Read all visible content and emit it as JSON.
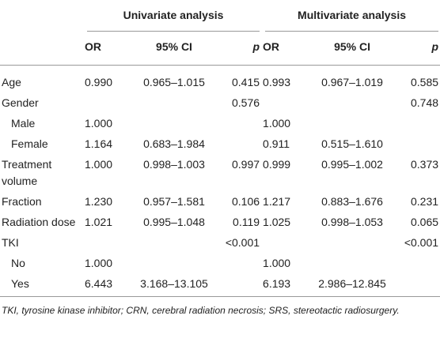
{
  "table": {
    "groups": [
      "Univariate analysis",
      "Multivariate analysis"
    ],
    "columns": [
      "OR",
      "95% CI",
      "p",
      "OR",
      "95% CI",
      "p"
    ],
    "rows": [
      {
        "label": "Age",
        "cells": [
          "0.990",
          "0.965–1.015",
          "0.415",
          "0.993",
          "0.967–1.019",
          "0.585"
        ]
      },
      {
        "label": "Gender",
        "cells": [
          null,
          null,
          "0.576",
          null,
          null,
          "0.748"
        ],
        "subrows": [
          {
            "label": "Male",
            "cells": [
              "1.000",
              null,
              null,
              "1.000",
              null,
              null
            ]
          },
          {
            "label": "Female",
            "cells": [
              "1.164",
              "0.683–1.984",
              null,
              "0.911",
              "0.515–1.610",
              null
            ]
          }
        ]
      },
      {
        "label": "Treatment volume",
        "cells": [
          "1.000",
          "0.998–1.003",
          "0.997",
          "0.999",
          "0.995–1.002",
          "0.373"
        ]
      },
      {
        "label": "Fraction",
        "cells": [
          "1.230",
          "0.957–1.581",
          "0.106",
          "1.217",
          "0.883–1.676",
          "0.231"
        ]
      },
      {
        "label": "Radiation dose",
        "cells": [
          "1.021",
          "0.995–1.048",
          "0.119",
          "1.025",
          "0.998–1.053",
          "0.065"
        ]
      },
      {
        "label": "TKI",
        "cells": [
          null,
          null,
          "<0.001",
          null,
          null,
          "<0.001"
        ],
        "subrows": [
          {
            "label": "No",
            "cells": [
              "1.000",
              null,
              null,
              "1.000",
              null,
              null
            ]
          },
          {
            "label": "Yes",
            "cells": [
              "6.443",
              "3.168–13.105",
              null,
              "6.193",
              "2.986–12.845",
              null
            ]
          }
        ]
      }
    ]
  },
  "footnote": "TKI, tyrosine kinase inhibitor; CRN, cerebral radiation necrosis; SRS, stereotactic radiosurgery."
}
